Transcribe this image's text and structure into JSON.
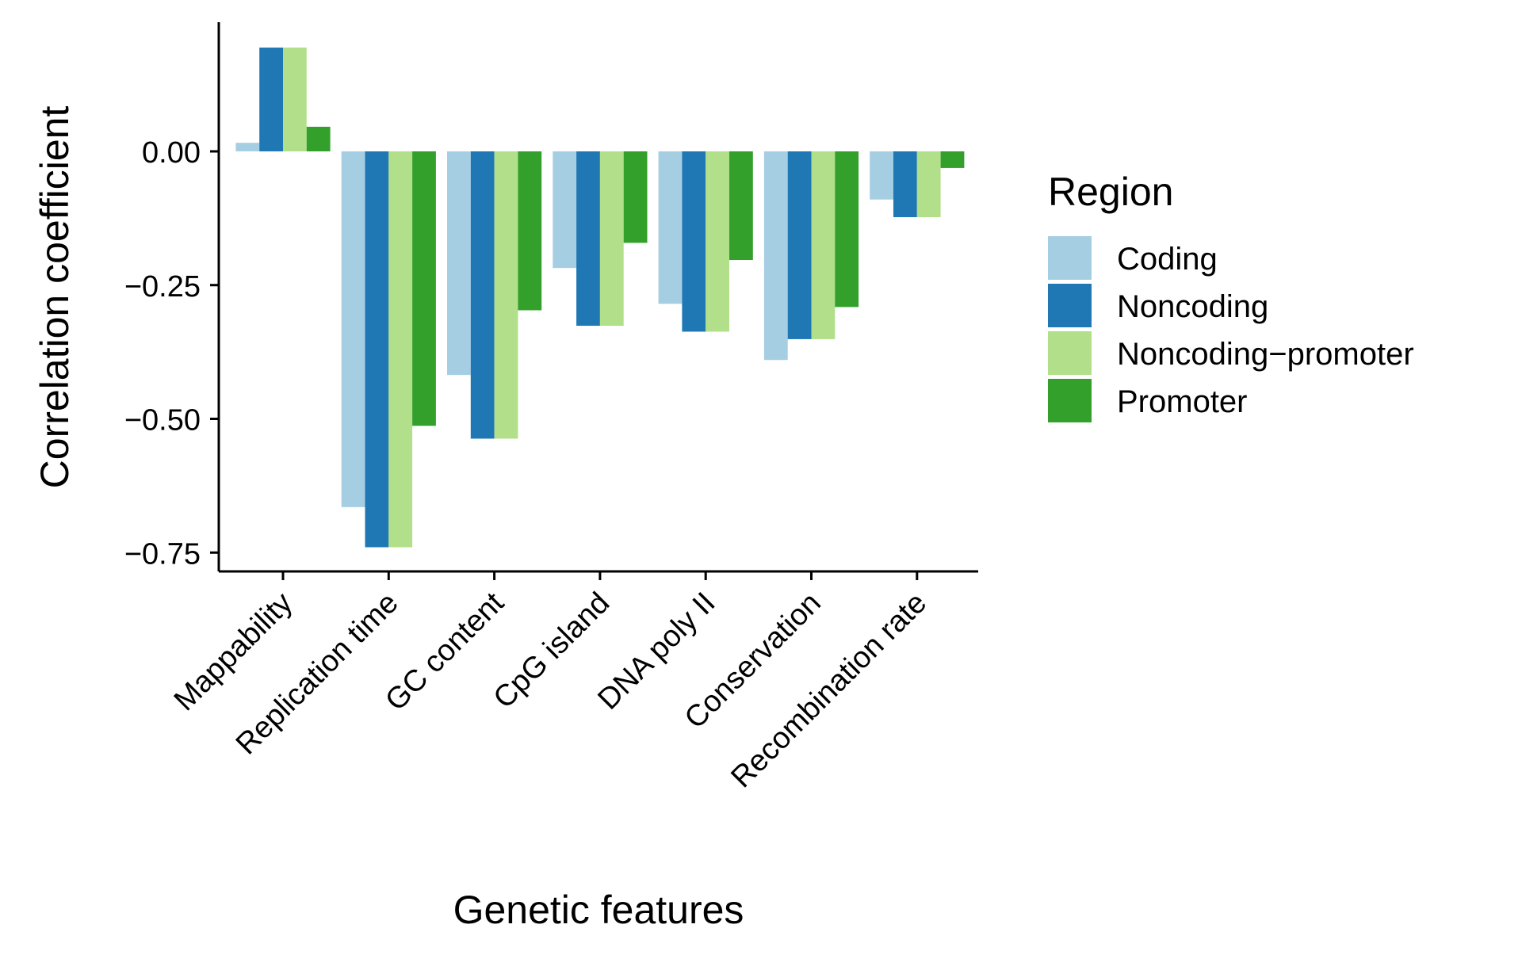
{
  "chart_data": {
    "type": "bar",
    "title": "",
    "xlabel": "Genetic features",
    "ylabel": "Correlation coefficient",
    "categories": [
      "Mappability",
      "Replication time",
      "GC content",
      "CpG island",
      "DNA poly II",
      "Conservation",
      "Recombination rate"
    ],
    "series": [
      {
        "name": "Coding",
        "color": "#a6cee3",
        "values": [
          0.016,
          -0.665,
          -0.418,
          -0.218,
          -0.285,
          -0.39,
          -0.09
        ]
      },
      {
        "name": "Noncoding",
        "color": "#1f78b4",
        "values": [
          0.194,
          -0.74,
          -0.537,
          -0.326,
          -0.337,
          -0.351,
          -0.123
        ]
      },
      {
        "name": "Noncoding−promoter",
        "color": "#b2df8a",
        "values": [
          0.194,
          -0.74,
          -0.537,
          -0.326,
          -0.337,
          -0.351,
          -0.123
        ]
      },
      {
        "name": "Promoter",
        "color": "#33a02c",
        "values": [
          0.046,
          -0.513,
          -0.297,
          -0.171,
          -0.203,
          -0.291,
          -0.031
        ]
      }
    ],
    "y_ticks": [
      0.0,
      -0.25,
      -0.5,
      -0.75
    ],
    "y_tick_labels": [
      "0.00",
      "−0.25",
      "−0.50",
      "−0.75"
    ],
    "ylim": [
      -0.785,
      0.235
    ],
    "grid": false,
    "legend": {
      "title": "Region",
      "placement": "right"
    }
  }
}
